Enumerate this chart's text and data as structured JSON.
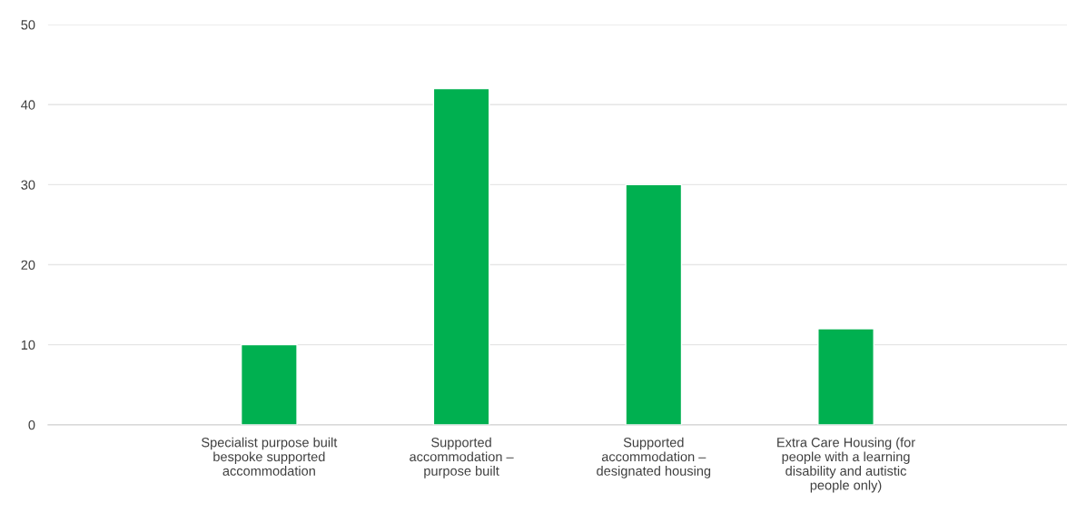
{
  "chart_data": {
    "type": "bar",
    "categories": [
      "Specialist purpose built\nbespoke supported\naccommodation",
      "Supported\naccommodation –\npurpose built",
      "Supported\naccommodation –\ndesignated housing",
      "Extra Care Housing (for\npeople with a learning\ndisability and autistic\npeople only)"
    ],
    "values": [
      10,
      42,
      30,
      12
    ],
    "color": "#00b050",
    "ylim": [
      0,
      50
    ],
    "yticks": [
      0,
      10,
      20,
      30,
      40,
      50
    ],
    "grid": "y"
  }
}
